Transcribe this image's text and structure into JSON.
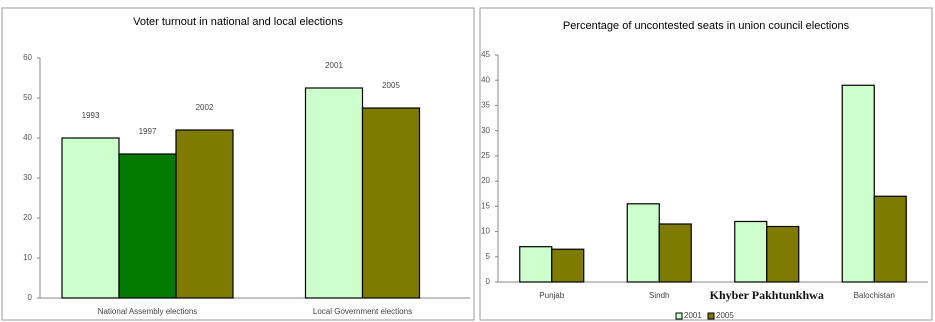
{
  "chart_data": [
    {
      "type": "grouped-bar",
      "title": "Voter turnout in national and local elections",
      "categories": [
        "National Assembly elections",
        "Local Government elections"
      ],
      "groups": [
        [
          {
            "label": "1993",
            "value": 40,
            "color": "#ccffcc"
          },
          {
            "label": "1997",
            "value": 36,
            "color": "#007a00"
          },
          {
            "label": "2002",
            "value": 42,
            "color": "#7f7a00"
          }
        ],
        [
          {
            "label": "2001",
            "value": 52.5,
            "color": "#ccffcc"
          },
          {
            "label": "2005",
            "value": 47.5,
            "color": "#7f7a00"
          }
        ]
      ],
      "ylim": [
        0,
        60
      ],
      "yticks": [
        0,
        10,
        20,
        30,
        40,
        50,
        60
      ]
    },
    {
      "type": "bar",
      "title": "Percentage of uncontested seats in union council elections",
      "categories": [
        "Punjab",
        "Sindh",
        "Khyber Pakhtunkhwa",
        "Balochistan"
      ],
      "series": [
        {
          "name": "2001",
          "color": "#ccffcc",
          "values": [
            7,
            15.5,
            12,
            39
          ]
        },
        {
          "name": "2005",
          "color": "#7f7a00",
          "values": [
            6.5,
            11.5,
            11,
            17
          ]
        }
      ],
      "ylim": [
        0,
        45
      ],
      "yticks": [
        0,
        5,
        10,
        15,
        20,
        25,
        30,
        35,
        40,
        45
      ],
      "legend": "bottom"
    }
  ]
}
